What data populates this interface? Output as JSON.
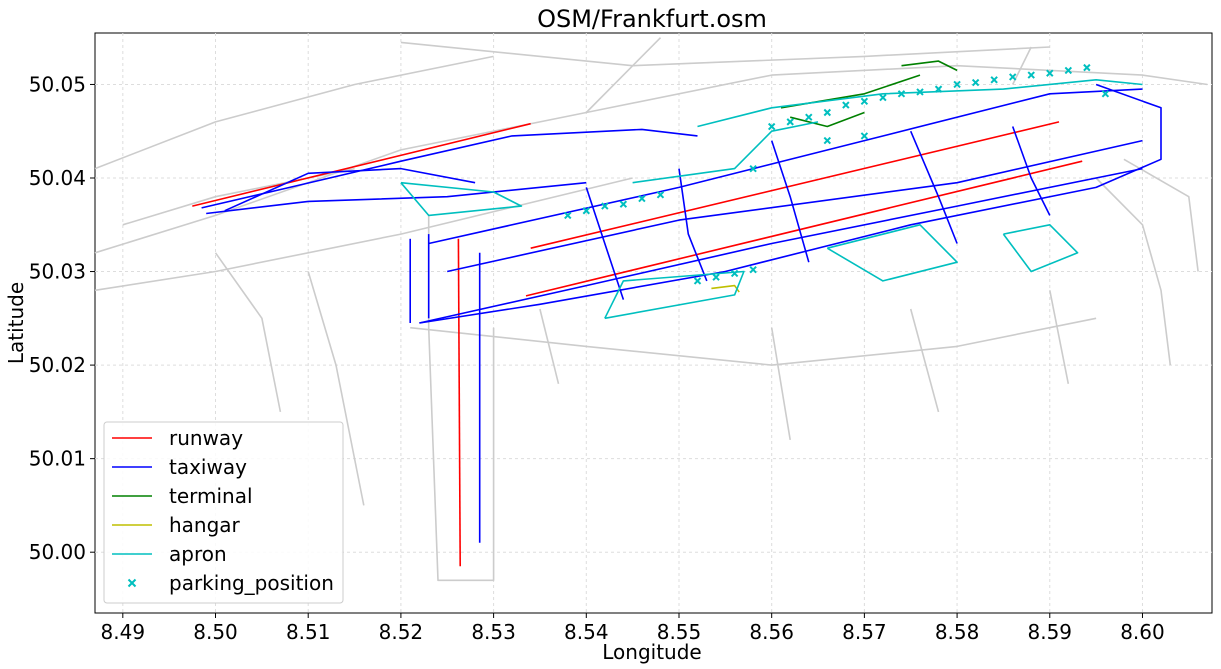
{
  "chart_data": {
    "type": "line",
    "title": "OSM/Frankfurt.osm",
    "xlabel": "Longitude",
    "ylabel": "Latitude",
    "xlim": [
      8.487,
      8.6075
    ],
    "ylim": [
      49.9935,
      50.0555
    ],
    "xticks": [
      8.49,
      8.5,
      8.51,
      8.52,
      8.53,
      8.54,
      8.55,
      8.56,
      8.57,
      8.58,
      8.59,
      8.6
    ],
    "xtick_labels": [
      "8.49",
      "8.50",
      "8.51",
      "8.52",
      "8.53",
      "8.54",
      "8.55",
      "8.56",
      "8.57",
      "8.58",
      "8.59",
      "8.60"
    ],
    "yticks": [
      50.0,
      50.01,
      50.02,
      50.03,
      50.04,
      50.05
    ],
    "ytick_labels": [
      "50.00",
      "50.01",
      "50.02",
      "50.03",
      "50.04",
      "50.05"
    ],
    "grid": true,
    "legend_position": "lower-left",
    "legend": [
      {
        "name": "runway",
        "color": "#ff0000",
        "marker": "line"
      },
      {
        "name": "taxiway",
        "color": "#0000ff",
        "marker": "line"
      },
      {
        "name": "terminal",
        "color": "#008000",
        "marker": "line"
      },
      {
        "name": "hangar",
        "color": "#bfbf00",
        "marker": "line"
      },
      {
        "name": "apron",
        "color": "#00bfbf",
        "marker": "line"
      },
      {
        "name": "parking_position",
        "color": "#00bfbf",
        "marker": "x"
      }
    ],
    "background_color": "#cccccc",
    "series": [
      {
        "name": "runway",
        "color": "#ff0000",
        "lines": [
          [
            [
              8.4975,
              50.037
            ],
            [
              8.534,
              50.0458
            ]
          ],
          [
            [
              8.5335,
              50.0274
            ],
            [
              8.5935,
              50.0418
            ]
          ],
          [
            [
              8.534,
              50.0325
            ],
            [
              8.591,
              50.046
            ]
          ],
          [
            [
              8.5262,
              50.0335
            ],
            [
              8.5264,
              49.9985
            ]
          ]
        ]
      },
      {
        "name": "taxiway",
        "color": "#0000ff",
        "lines": [
          [
            [
              8.4985,
              50.0368
            ],
            [
              8.508,
              50.039
            ],
            [
              8.52,
              50.0418
            ],
            [
              8.532,
              50.0445
            ],
            [
              8.546,
              50.0452
            ],
            [
              8.552,
              50.0445
            ]
          ],
          [
            [
              8.499,
              50.0362
            ],
            [
              8.51,
              50.0375
            ],
            [
              8.525,
              50.038
            ],
            [
              8.54,
              50.0395
            ]
          ],
          [
            [
              8.501,
              50.0365
            ],
            [
              8.51,
              50.0405
            ],
            [
              8.52,
              50.041
            ],
            [
              8.528,
              50.0395
            ]
          ],
          [
            [
              8.523,
              50.033
            ],
            [
              8.55,
              50.039
            ],
            [
              8.57,
              50.044
            ],
            [
              8.59,
              50.049
            ],
            [
              8.6,
              50.0495
            ]
          ],
          [
            [
              8.525,
              50.03
            ],
            [
              8.55,
              50.0355
            ],
            [
              8.58,
              50.0395
            ],
            [
              8.6,
              50.044
            ]
          ],
          [
            [
              8.522,
              50.0245
            ],
            [
              8.54,
              50.0285
            ],
            [
              8.56,
              50.033
            ],
            [
              8.58,
              50.037
            ],
            [
              8.6,
              50.041
            ]
          ],
          [
            [
              8.522,
              50.0245
            ],
            [
              8.535,
              50.0265
            ],
            [
              8.555,
              50.03
            ],
            [
              8.575,
              50.035
            ],
            [
              8.595,
              50.039
            ],
            [
              8.602,
              50.042
            ],
            [
              8.602,
              50.0475
            ],
            [
              8.595,
              50.05
            ]
          ],
          [
            [
              8.521,
              50.0335
            ],
            [
              8.521,
              50.0245
            ]
          ],
          [
            [
              8.523,
              50.034
            ],
            [
              8.523,
              50.025
            ]
          ],
          [
            [
              8.5285,
              50.032
            ],
            [
              8.5285,
              50.001
            ]
          ],
          [
            [
              8.56,
              50.044
            ],
            [
              8.562,
              50.038
            ],
            [
              8.564,
              50.031
            ]
          ],
          [
            [
              8.575,
              50.045
            ],
            [
              8.578,
              50.038
            ],
            [
              8.58,
              50.033
            ]
          ],
          [
            [
              8.54,
              50.039
            ],
            [
              8.542,
              50.033
            ],
            [
              8.544,
              50.027
            ]
          ],
          [
            [
              8.55,
              50.041
            ],
            [
              8.551,
              50.034
            ],
            [
              8.553,
              50.029
            ]
          ],
          [
            [
              8.586,
              50.0455
            ],
            [
              8.588,
              50.04
            ],
            [
              8.59,
              50.036
            ]
          ]
        ]
      },
      {
        "name": "terminal",
        "color": "#008000",
        "lines": [
          [
            [
              8.561,
              50.0475
            ],
            [
              8.57,
              50.049
            ],
            [
              8.576,
              50.051
            ]
          ],
          [
            [
              8.562,
              50.0465
            ],
            [
              8.566,
              50.0455
            ],
            [
              8.57,
              50.047
            ]
          ],
          [
            [
              8.574,
              50.052
            ],
            [
              8.578,
              50.0525
            ],
            [
              8.58,
              50.0515
            ]
          ]
        ]
      },
      {
        "name": "hangar",
        "color": "#bfbf00",
        "lines": [
          [
            [
              8.5535,
              50.0282
            ],
            [
              8.556,
              50.0285
            ],
            [
              8.5565,
              50.0278
            ]
          ]
        ]
      },
      {
        "name": "apron",
        "color": "#00bfbf",
        "lines": [
          [
            [
              8.542,
              50.025
            ],
            [
              8.556,
              50.0275
            ],
            [
              8.557,
              50.03
            ],
            [
              8.544,
              50.029
            ],
            [
              8.542,
              50.025
            ]
          ],
          [
            [
              8.545,
              50.0395
            ],
            [
              8.556,
              50.041
            ],
            [
              8.56,
              50.045
            ],
            [
              8.565,
              50.046
            ]
          ],
          [
            [
              8.552,
              50.0455
            ],
            [
              8.56,
              50.0475
            ],
            [
              8.572,
              50.049
            ],
            [
              8.585,
              50.0495
            ],
            [
              8.595,
              50.0505
            ],
            [
              8.6,
              50.05
            ]
          ],
          [
            [
              8.566,
              50.0325
            ],
            [
              8.576,
              50.035
            ],
            [
              8.58,
              50.031
            ],
            [
              8.572,
              50.029
            ],
            [
              8.566,
              50.0325
            ]
          ],
          [
            [
              8.585,
              50.034
            ],
            [
              8.59,
              50.035
            ],
            [
              8.593,
              50.032
            ],
            [
              8.588,
              50.03
            ],
            [
              8.585,
              50.034
            ]
          ],
          [
            [
              8.52,
              50.0395
            ],
            [
              8.53,
              50.0385
            ],
            [
              8.533,
              50.037
            ],
            [
              8.523,
              50.036
            ],
            [
              8.52,
              50.0395
            ]
          ]
        ]
      },
      {
        "name": "parking_position",
        "color": "#00bfbf",
        "marker": "x",
        "points": [
          [
            8.538,
            50.036
          ],
          [
            8.54,
            50.0365
          ],
          [
            8.542,
            50.037
          ],
          [
            8.544,
            50.0372
          ],
          [
            8.546,
            50.0378
          ],
          [
            8.548,
            50.0382
          ],
          [
            8.552,
            50.029
          ],
          [
            8.554,
            50.0294
          ],
          [
            8.556,
            50.0298
          ],
          [
            8.558,
            50.0302
          ],
          [
            8.56,
            50.0455
          ],
          [
            8.562,
            50.046
          ],
          [
            8.564,
            50.0465
          ],
          [
            8.566,
            50.047
          ],
          [
            8.568,
            50.0478
          ],
          [
            8.57,
            50.0482
          ],
          [
            8.572,
            50.0486
          ],
          [
            8.574,
            50.049
          ],
          [
            8.576,
            50.0492
          ],
          [
            8.578,
            50.0495
          ],
          [
            8.58,
            50.05
          ],
          [
            8.582,
            50.0502
          ],
          [
            8.584,
            50.0505
          ],
          [
            8.586,
            50.0508
          ],
          [
            8.588,
            50.051
          ],
          [
            8.59,
            50.0512
          ],
          [
            8.592,
            50.0515
          ],
          [
            8.594,
            50.0518
          ],
          [
            8.596,
            50.049
          ],
          [
            8.566,
            50.044
          ],
          [
            8.57,
            50.0445
          ],
          [
            8.558,
            50.041
          ]
        ]
      }
    ]
  }
}
